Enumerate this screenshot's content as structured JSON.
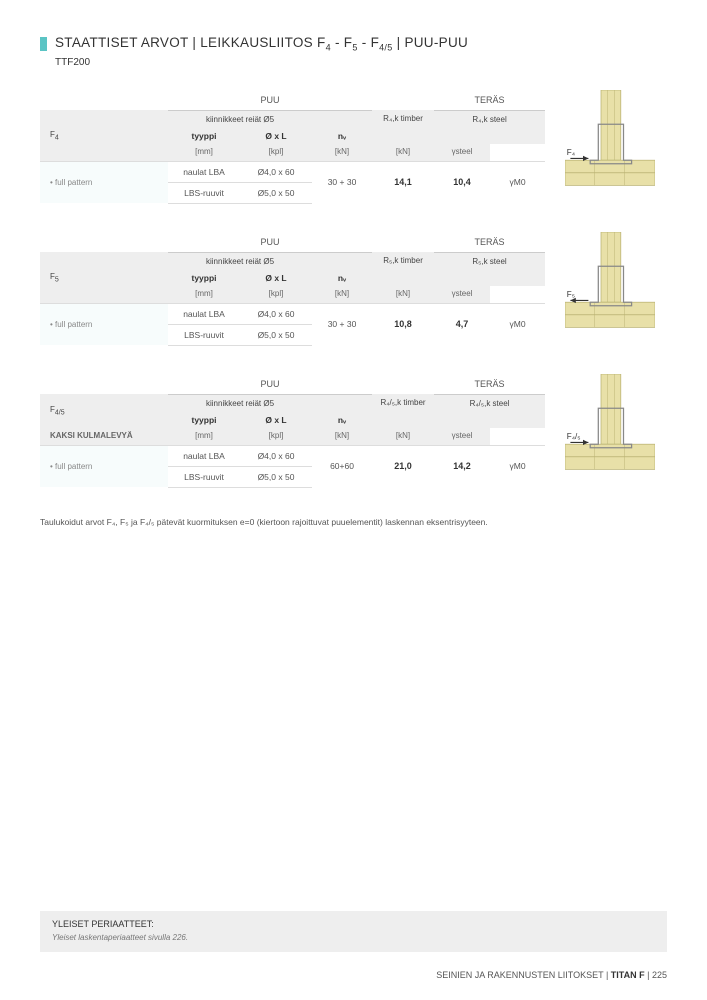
{
  "title": {
    "prefix": "STAATTISET ARVOT | LEIKKAUSLIITOS F",
    "sub1": "4",
    "mid1": " - F",
    "sub2": "5",
    "mid2": " - F",
    "sub3": "4/5",
    "suffix": " | PUU-PUU"
  },
  "subtitle": "TTF200",
  "headers": {
    "puu": "PUU",
    "teras": "TERÄS",
    "kiinnikkeet": "kiinnikkeet reiät Ø5",
    "tyyppi": "tyyppi",
    "oxl": "Ø x L",
    "mm": "[mm]",
    "nv": "nᵥ",
    "kpl": "[kpl]",
    "kn": "[kN]",
    "gamma": "γsteel",
    "gamma_m0": "γM0"
  },
  "tables": [
    {
      "label_main": "F",
      "label_sub": "4",
      "subtitle": "",
      "r_timber": "R₄,k timber",
      "r_steel": "R₄,k steel",
      "force_label": "F₄",
      "pattern": "• full pattern",
      "rows": [
        {
          "type": "naulat LBA",
          "dim": "Ø4,0 x 60"
        },
        {
          "type": "LBS-ruuvit",
          "dim": "Ø5,0 x 50"
        }
      ],
      "nv": "30 + 30",
      "val_timber": "14,1",
      "val_steel": "10,4"
    },
    {
      "label_main": "F",
      "label_sub": "5",
      "subtitle": "",
      "r_timber": "R₅,k timber",
      "r_steel": "R₅,k steel",
      "force_label": "F₅",
      "pattern": "• full pattern",
      "rows": [
        {
          "type": "naulat LBA",
          "dim": "Ø4,0 x 60"
        },
        {
          "type": "LBS-ruuvit",
          "dim": "Ø5,0 x 50"
        }
      ],
      "nv": "30 + 30",
      "val_timber": "10,8",
      "val_steel": "4,7"
    },
    {
      "label_main": "F",
      "label_sub": "4/5",
      "subtitle": "KAKSI KULMALEVYÄ",
      "r_timber": "R₄/₅,k timber",
      "r_steel": "R₄/₅,k steel",
      "force_label": "F₄/₅",
      "pattern": "• full pattern",
      "rows": [
        {
          "type": "naulat LBA",
          "dim": "Ø4,0 x 60"
        },
        {
          "type": "LBS-ruuvit",
          "dim": "Ø5,0 x 50"
        }
      ],
      "nv": "60+60",
      "val_timber": "21,0",
      "val_steel": "14,2"
    }
  ],
  "note": "Taulukoidut arvot F₄, F₅ ja F₄/₅ pätevät kuormituksen e=0 (kiertoon rajoittuvat puuelementit) laskennan eksentrisyyteen.",
  "footer_box": {
    "title": "YLEISET PERIAATTEET:",
    "text": "Yleiset laskentaperiaatteet sivulla 226."
  },
  "page_footer": {
    "section": "SEINIEN JA RAKENNUSTEN LIITOKSET",
    "product": "TITAN F",
    "page": "225"
  },
  "colors": {
    "accent": "#5bc4c4",
    "header_bg": "#eeeeee",
    "wood_fill": "#e8e0a8",
    "wood_stroke": "#b8b070",
    "bracket": "#888888"
  }
}
